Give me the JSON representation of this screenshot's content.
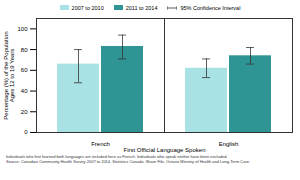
{
  "chart_data": {
    "type": "bar",
    "categories": [
      "French",
      "English"
    ],
    "series": [
      {
        "name": "2007 to 2010",
        "color": "#a8e2e4",
        "values": [
          66,
          62
        ],
        "ci_low": [
          48,
          53
        ],
        "ci_high": [
          80,
          71
        ]
      },
      {
        "name": "2011 to 2014",
        "color": "#2f9494",
        "values": [
          83,
          74
        ],
        "ci_low": [
          71,
          66
        ],
        "ci_high": [
          94,
          82
        ]
      }
    ],
    "ci_label": "95% Confidence Interval",
    "xlabel": "First Official Language Spoken",
    "ylabel": "Percentage (%) of the Population\nAges 12 to 19 Years",
    "ylim": [
      0,
      110
    ],
    "yticks": [
      0,
      20,
      40,
      60,
      80,
      100
    ],
    "grid": false,
    "legend": "top",
    "notes": [
      "Individuals who first learned both languages are included here as French. Individuals who speak neither have been excluded.",
      "Source: Canadian Community Health Survey 2007 to 2014, Statistics Canada. Share File, Ontario Ministry of Health and Long-Term Care."
    ]
  }
}
